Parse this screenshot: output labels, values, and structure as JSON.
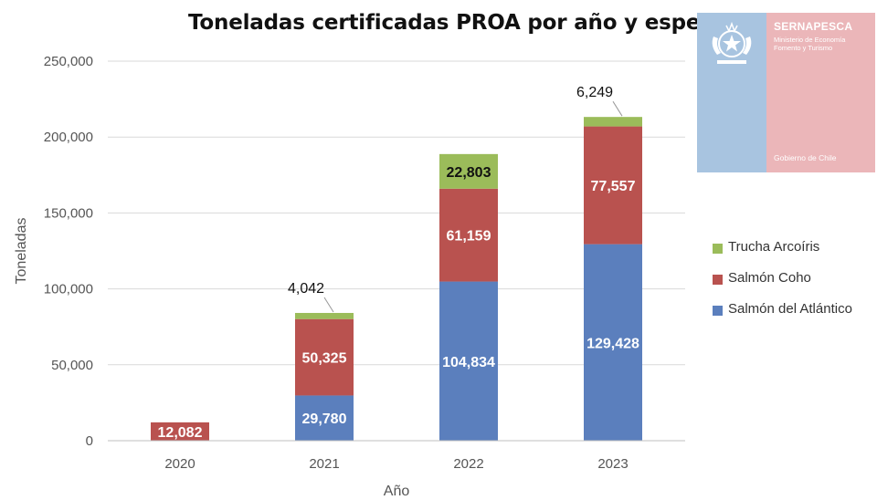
{
  "chart_data": {
    "type": "bar",
    "stacked": true,
    "title": "Toneladas certificadas PROA por año y especie",
    "xlabel": "Año",
    "ylabel": "Toneladas",
    "ylim": [
      0,
      250000
    ],
    "yticks": [
      0,
      50000,
      100000,
      150000,
      200000,
      250000
    ],
    "ytick_labels": [
      "0",
      "50,000",
      "100,000",
      "150,000",
      "200,000",
      "250,000"
    ],
    "grid": true,
    "legend_position": "right",
    "categories": [
      "2020",
      "2021",
      "2022",
      "2023"
    ],
    "series": [
      {
        "name": "Salmón del Atlántico",
        "color": "#5b7fbd",
        "values": [
          0,
          29780,
          104834,
          129428
        ],
        "labels": [
          "",
          "29,780",
          "104,834",
          "129,428"
        ]
      },
      {
        "name": "Salmón Coho",
        "color": "#b9524f",
        "values": [
          12082,
          50325,
          61159,
          77557
        ],
        "labels": [
          "12,082",
          "50,325",
          "61,159",
          "77,557"
        ]
      },
      {
        "name": "Trucha Arcoíris",
        "color": "#9bbc5a",
        "values": [
          0,
          4042,
          22803,
          6249
        ],
        "labels": [
          "",
          "4,042",
          "22,803",
          "6,249"
        ]
      }
    ]
  },
  "logo": {
    "name": "SERNAPESCA",
    "subtitle": "Ministerio de Economía Fomento y Turismo",
    "footer": "Gobierno de Chile"
  }
}
